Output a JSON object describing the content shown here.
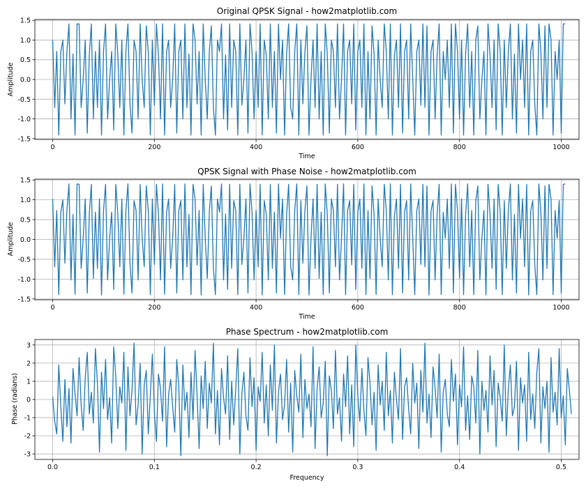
{
  "chart_data": [
    {
      "type": "line",
      "title": "Original QPSK Signal - how2matplotlib.com",
      "xlabel": "Time",
      "ylabel": "Amplitude",
      "xlim": [
        -35,
        1035
      ],
      "ylim": [
        -1.52,
        1.52
      ],
      "xticks": [
        0,
        200,
        400,
        600,
        800,
        1000
      ],
      "xtick_labels": [
        "0",
        "200",
        "400",
        "600",
        "800",
        "1000"
      ],
      "yticks": [
        -1.5,
        -1.0,
        -0.5,
        0.0,
        0.5,
        1.0,
        1.5
      ],
      "ytick_labels": [
        "-1.5",
        "-1.0",
        "-0.5",
        "0.0",
        "0.5",
        "1.0",
        "1.5"
      ],
      "grid": true,
      "color": "#1f77b4",
      "series": [
        {
          "x_start": 0,
          "x_step": 4,
          "values": [
            1.0,
            -0.71,
            0.71,
            -1.41,
            0.71,
            1.0,
            -0.62,
            0.71,
            1.41,
            -1.0,
            0.65,
            -1.41,
            1.41,
            1.41,
            -0.71,
            0.0,
            1.0,
            -1.36,
            0.62,
            1.41,
            -1.0,
            0.71,
            -0.71,
            1.0,
            -1.41,
            0.71,
            1.41,
            -1.0,
            0.0,
            0.71,
            -1.28,
            1.41,
            0.65,
            -0.71,
            1.0,
            -1.41,
            0.71,
            1.41,
            -0.62,
            -1.36,
            1.0,
            0.71,
            -1.0,
            1.41,
            0.0,
            -0.71,
            1.36,
            0.71,
            -1.41,
            1.0,
            -0.65,
            1.41,
            0.62,
            -1.0,
            1.41,
            -1.41,
            0.71,
            1.0,
            -0.71,
            0.0,
            1.41,
            -1.36,
            0.71,
            1.0,
            -1.0,
            1.41,
            -0.71,
            0.65,
            -1.41,
            1.41,
            1.0,
            -0.62,
            0.71,
            -1.41,
            1.41,
            0.0,
            -1.0,
            0.71,
            1.36,
            -0.71,
            -1.41,
            1.0,
            0.71,
            1.41,
            -1.0,
            0.62,
            -1.28,
            1.41,
            -0.71,
            1.0,
            0.71,
            -1.41,
            1.41,
            -0.65,
            0.0,
            1.0,
            -1.36,
            1.41,
            0.71,
            -1.0,
            0.71,
            -0.71,
            1.41,
            -1.41,
            1.0,
            0.62,
            -1.0,
            1.41,
            -0.71,
            0.71,
            -1.36,
            1.41,
            0.0,
            1.0,
            -1.41,
            0.65,
            1.41,
            -0.71,
            -1.0,
            0.71,
            1.41,
            -1.41,
            1.0,
            -0.62,
            0.71,
            1.36,
            -1.41,
            0.0,
            1.0,
            -0.71,
            1.41,
            -1.0,
            0.71,
            -1.41,
            1.41,
            0.65,
            -1.36,
            1.0,
            0.71,
            -0.71,
            1.41,
            -1.0,
            0.0,
            1.41,
            -1.41,
            0.71,
            1.0,
            -0.62,
            1.41,
            -1.28,
            0.71,
            1.0,
            -0.71,
            1.41,
            -1.41,
            0.71,
            -1.0,
            1.36,
            0.65,
            -1.41,
            1.0,
            0.0,
            -0.71,
            1.41,
            0.71,
            -1.0,
            1.41,
            -1.41,
            0.62,
            1.0,
            -0.71,
            1.41,
            -1.36,
            0.71,
            1.0,
            -1.0,
            1.41,
            0.0,
            -1.41,
            0.71,
            1.0,
            -0.65,
            1.41,
            -0.71,
            1.36,
            -1.41,
            0.71,
            1.0,
            -1.0,
            0.62,
            1.41,
            -1.41,
            0.71,
            0.0,
            1.0,
            -0.71,
            1.41,
            -1.36,
            1.41,
            0.71,
            -1.0,
            1.0,
            -1.41,
            0.65,
            1.41,
            -0.71,
            0.71,
            -1.41,
            1.0,
            1.36,
            -1.0,
            0.0,
            0.71,
            -1.41,
            1.41,
            0.62,
            -0.71,
            1.0,
            -1.28,
            1.41,
            0.71,
            -1.41,
            1.0,
            -0.71,
            0.71,
            1.41,
            -1.0,
            0.65,
            -1.36,
            1.41,
            0.0,
            1.0,
            -0.71,
            1.41,
            -1.41,
            0.71,
            1.0,
            -0.62,
            -1.41,
            1.41,
            0.71,
            -1.0,
            1.36,
            -0.71,
            1.41,
            1.0,
            -1.41,
            0.71,
            0.0,
            1.0,
            -1.36,
            1.41,
            1.41
          ]
        }
      ]
    },
    {
      "type": "line",
      "title": "QPSK Signal with Phase Noise - how2matplotlib.com",
      "xlabel": "Time",
      "ylabel": "Amplitude",
      "xlim": [
        -35,
        1035
      ],
      "ylim": [
        -1.52,
        1.52
      ],
      "xticks": [
        0,
        200,
        400,
        600,
        800,
        1000
      ],
      "xtick_labels": [
        "0",
        "200",
        "400",
        "600",
        "800",
        "1000"
      ],
      "yticks": [
        -1.5,
        -1.0,
        -0.5,
        0.0,
        0.5,
        1.0,
        1.5
      ],
      "ytick_labels": [
        "-1.5",
        "-1.0",
        "-0.5",
        "0.0",
        "0.5",
        "1.0",
        "1.5"
      ],
      "grid": true,
      "color": "#1f77b4",
      "series": [
        {
          "x_start": 0,
          "x_step": 4,
          "values": [
            1.02,
            -0.69,
            0.73,
            -1.39,
            0.69,
            1.0,
            -0.6,
            0.73,
            1.4,
            -1.02,
            0.63,
            -1.38,
            1.4,
            1.39,
            -0.73,
            0.03,
            1.02,
            -1.35,
            0.64,
            1.39,
            -0.98,
            0.69,
            -0.73,
            1.02,
            -1.4,
            0.73,
            1.39,
            -1.02,
            0.03,
            0.69,
            -1.26,
            1.39,
            0.67,
            -0.69,
            1.02,
            -1.38,
            0.73,
            1.4,
            -0.6,
            -1.35,
            0.98,
            0.73,
            -1.02,
            1.39,
            0.03,
            -0.69,
            1.35,
            0.73,
            -1.39,
            1.02,
            -0.63,
            1.39,
            0.64,
            -1.02,
            1.4,
            -1.38,
            0.69,
            1.02,
            -0.73,
            0.03,
            1.39,
            -1.35,
            0.73,
            0.98,
            -1.02,
            1.4,
            -0.69,
            0.63,
            -1.39,
            1.39,
            1.02,
            -0.64,
            0.73,
            -1.4,
            1.39,
            0.03,
            -0.98,
            0.69,
            1.35,
            -0.73,
            -1.39,
            1.02,
            0.69,
            1.4,
            -1.02,
            0.64,
            -1.26,
            1.39,
            -0.73,
            0.98,
            0.73,
            -1.39,
            1.39,
            -0.63,
            0.03,
            1.02,
            -1.35,
            1.4,
            0.69,
            -1.02,
            0.73,
            -0.69,
            1.39,
            -1.4,
            0.98,
            0.64,
            -1.02,
            1.39,
            -0.73,
            0.69,
            -1.35,
            1.4,
            0.03,
            1.02,
            -1.39,
            0.63,
            1.39,
            -0.69,
            -1.02,
            0.73,
            1.4,
            -1.39,
            0.98,
            -0.6,
            0.73,
            1.35,
            -1.4,
            0.03,
            1.02,
            -0.73,
            1.39,
            -0.98,
            0.69,
            -1.39,
            1.4,
            0.63,
            -1.35,
            1.02,
            0.73,
            -0.69,
            1.39,
            -1.02,
            0.03,
            1.4,
            -1.39,
            0.73,
            0.98,
            -0.64,
            1.39,
            -1.26,
            0.69,
            1.02,
            -0.73,
            1.4,
            -1.39,
            0.73,
            -0.98,
            1.35,
            0.63,
            -1.39,
            1.02,
            0.03,
            -0.69,
            1.39,
            0.73,
            -1.02,
            1.4,
            -1.39,
            0.6,
            1.02,
            -0.73,
            1.39,
            -1.35,
            0.69,
            0.98,
            -1.02,
            1.4,
            0.03,
            -1.39,
            0.73,
            1.02,
            -0.63,
            1.39,
            -0.69,
            1.35,
            -1.4,
            0.73,
            0.98,
            -1.02,
            0.64,
            1.39,
            -1.39,
            0.69,
            0.03,
            1.02,
            -0.73,
            1.4,
            -1.35,
            1.39,
            0.73,
            -0.98,
            1.02,
            -1.39,
            0.63,
            1.4,
            -0.69,
            0.73,
            -1.39,
            0.98,
            1.35,
            -1.02,
            0.03,
            0.73,
            -1.4,
            1.39,
            0.64,
            -0.73,
            1.02,
            -1.26,
            1.39,
            0.69,
            -1.39,
            0.98,
            -0.73,
            0.73,
            1.4,
            -1.02,
            0.63,
            -1.35,
            1.39,
            0.03,
            1.02,
            -0.69,
            1.39,
            -1.4,
            0.73,
            0.98,
            -0.64,
            -1.39,
            1.4,
            0.69,
            -1.02,
            1.35,
            -0.73,
            1.39,
            1.02,
            -1.39,
            0.73,
            0.03,
            0.98,
            -1.35,
            1.39,
            1.4
          ]
        }
      ]
    },
    {
      "type": "line",
      "title": "Phase Spectrum - how2matplotlib.com",
      "xlabel": "Frequency",
      "ylabel": "Phase (radians)",
      "xlim": [
        -0.0175,
        0.5175
      ],
      "ylim": [
        -3.3,
        3.3
      ],
      "xticks": [
        0.0,
        0.1,
        0.2,
        0.3,
        0.4,
        0.5
      ],
      "xtick_labels": [
        "0.0",
        "0.1",
        "0.2",
        "0.3",
        "0.4",
        "0.5"
      ],
      "yticks": [
        -3,
        -2,
        -1,
        0,
        1,
        2,
        3
      ],
      "ytick_labels": [
        "-3",
        "-2",
        "-1",
        "0",
        "1",
        "2",
        "3"
      ],
      "grid": true,
      "color": "#1f77b4",
      "series": [
        {
          "x_start": 0.0,
          "x_step": 0.002,
          "values": [
            0.15,
            -1.2,
            -1.9,
            1.9,
            -0.4,
            -2.3,
            1.1,
            -1.5,
            0.6,
            -2.4,
            1.7,
            0.3,
            -0.9,
            2.3,
            -0.3,
            -1.7,
            1.2,
            2.6,
            -0.8,
            0.4,
            -1.3,
            2.8,
            0.9,
            -2.9,
            1.5,
            -0.5,
            2.2,
            -1.1,
            0.1,
            -2.4,
            2.9,
            1.3,
            -1.6,
            0.7,
            -0.2,
            2.6,
            -2.8,
            1.8,
            -0.9,
            0.5,
            3.1,
            -1.4,
            -0.3,
            2.0,
            -3.0,
            0.8,
            1.6,
            -1.9,
            0.2,
            2.5,
            -0.7,
            -2.3,
            1.4,
            0.6,
            -1.2,
            2.9,
            -2.6,
            0.3,
            1.1,
            -0.4,
            -1.8,
            2.2,
            0.7,
            -3.1,
            1.9,
            -0.6,
            0.4,
            -2.1,
            1.5,
            -1.1,
            2.7,
            0.2,
            -2.7,
            1.3,
            -0.5,
            2.1,
            -1.6,
            0.9,
            -0.2,
            3.1,
            -1.9,
            0.5,
            -2.5,
            1.7,
            0.1,
            -0.8,
            2.4,
            -2.2,
            1.0,
            -1.4,
            0.6,
            2.8,
            -3.0,
            0.3,
            1.5,
            -0.9,
            -1.7,
            2.3,
            -0.4,
            1.2,
            -2.8,
            0.7,
            -0.1,
            2.6,
            -1.3,
            0.8,
            -2.0,
            1.9,
            -0.6,
            3.0,
            -2.4,
            0.4,
            1.4,
            -1.1,
            -0.3,
            2.2,
            -1.8,
            0.9,
            -2.9,
            1.6,
            0.2,
            -0.7,
            2.5,
            -2.1,
            1.1,
            -0.5,
            0.3,
            -1.5,
            2.9,
            -2.7,
            0.6,
            1.8,
            -1.0,
            -0.2,
            2.1,
            -3.1,
            1.3,
            0.5,
            -1.6,
            2.7,
            -0.8,
            0.1,
            -2.3,
            1.4,
            -0.4,
            2.4,
            -1.9,
            0.8,
            -2.6,
            3.0,
            0.2,
            -1.2,
            1.7,
            -0.6,
            -2.0,
            2.3,
            0.9,
            -1.4,
            0.4,
            -2.8,
            1.9,
            -0.3,
            1.0,
            -1.7,
            2.6,
            -0.9,
            0.5,
            -2.4,
            1.5,
            0.0,
            -1.1,
            2.8,
            -2.2,
            0.7,
            1.2,
            -0.5,
            -1.9,
            2.0,
            -0.2,
            0.9,
            -2.7,
            1.6,
            -0.7,
            3.1,
            -1.3,
            0.3,
            -2.1,
            1.8,
            0.6,
            -1.0,
            2.5,
            -2.9,
            0.4,
            1.1,
            -0.8,
            -1.5,
            2.2,
            -0.1,
            1.4,
            -2.5,
            0.8,
            -0.4,
            2.9,
            -1.7,
            0.2,
            -2.2,
            1.3,
            0.7,
            -1.3,
            2.7,
            -3.0,
            1.0,
            -0.6,
            0.5,
            -1.8,
            2.4,
            -0.3,
            1.6,
            -2.6,
            0.9,
            0.1,
            -1.2,
            3.0,
            -2.0,
            0.6,
            1.9,
            -0.9,
            -0.4,
            2.1,
            -2.8,
            1.2,
            -0.2,
            0.8,
            -2.3,
            2.6,
            -1.1,
            0.3,
            -1.6,
            1.5,
            2.8,
            -2.4,
            0.7,
            -0.5,
            1.0,
            -2.9,
            2.3,
            -0.7,
            0.4,
            -1.4,
            2.8,
            -1.0,
            0.2,
            -2.5,
            1.7,
            0.5,
            -0.8
          ]
        }
      ]
    }
  ]
}
